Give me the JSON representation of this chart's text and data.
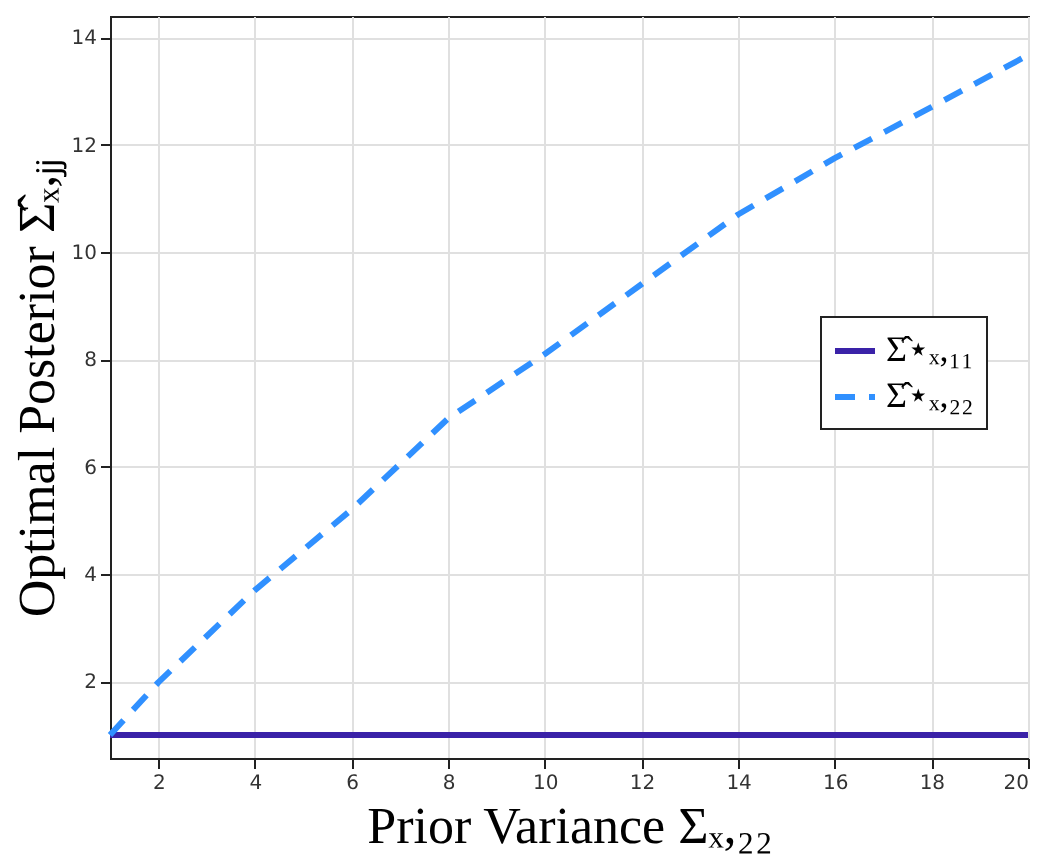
{
  "chart_data": {
    "type": "line",
    "xlabel": "Prior Variance Σₓ,₂₂",
    "ylabel": "Optimal Posterior Σ̂ₓ,ⱼⱼ",
    "x": [
      1,
      2,
      4,
      6,
      8,
      10,
      12,
      14,
      16,
      18,
      20
    ],
    "series": [
      {
        "name": "Σ̂⋆ₓ,₁₁",
        "color": "#3a22a8",
        "line_style": "solid",
        "values": [
          1,
          1,
          1,
          1,
          1,
          1,
          1,
          1,
          1,
          1,
          1
        ]
      },
      {
        "name": "Σ̂⋆ₓ,₂₂",
        "color": "#3090ff",
        "line_style": "dashed",
        "values": [
          1,
          1.98,
          3.7,
          5.2,
          6.9,
          8.1,
          9.4,
          10.7,
          11.75,
          12.7,
          13.67
        ]
      }
    ],
    "xlim": [
      1,
      20
    ],
    "ylim": [
      0.57,
      14.4
    ],
    "xticks": [
      2,
      4,
      6,
      8,
      10,
      12,
      14,
      16,
      18,
      20
    ],
    "yticks": [
      2,
      4,
      6,
      8,
      10,
      12,
      14
    ],
    "grid": true,
    "legend": "right",
    "marker": "none"
  }
}
